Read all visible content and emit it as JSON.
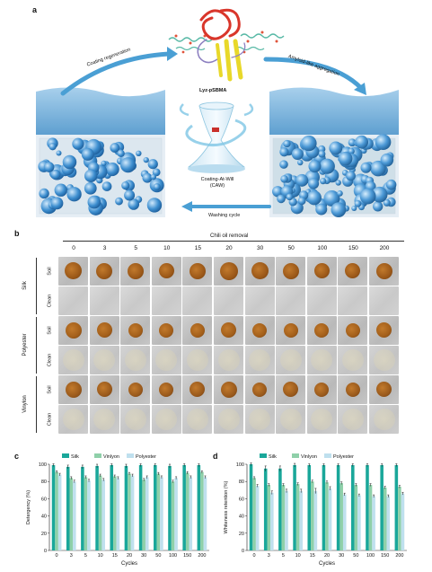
{
  "panel_a": {
    "letter": "a",
    "protein_label": "Lyz-pSBMA",
    "left_arrow_label": "Coating regeneration",
    "right_arrow_label": "Amyloid-like aggregation",
    "center_label_line1": "Coating-At-Will",
    "center_label_line2": "(CAW)",
    "bottom_arrow_label": "Washing cycle",
    "colors": {
      "fabric": "#7fb7df",
      "arrow": "#4a9fd4",
      "sphere": "#3d8fd0",
      "helix": "#d9362b",
      "sheet": "#e8d82a"
    }
  },
  "panel_b": {
    "letter": "b",
    "title": "Chili oil removal",
    "cycles": [
      "0",
      "3",
      "5",
      "10",
      "15",
      "20",
      "30",
      "50",
      "100",
      "150",
      "200"
    ],
    "groups": [
      {
        "name": "Silk",
        "rows": [
          "Soil",
          "Clean"
        ]
      },
      {
        "name": "Polyester",
        "rows": [
          "Soil",
          "Clean"
        ]
      },
      {
        "name": "Vinylon",
        "rows": [
          "Soil",
          "Clean"
        ]
      }
    ]
  },
  "chart_data": [
    {
      "panel": "c",
      "type": "bar",
      "categories": [
        "0",
        "3",
        "5",
        "10",
        "15",
        "20",
        "30",
        "50",
        "100",
        "150",
        "200"
      ],
      "series": [
        {
          "name": "Silk",
          "color": "#1aa79a",
          "values": [
            99,
            97,
            97,
            98,
            99,
            98,
            99,
            99,
            98,
            99,
            99
          ],
          "err": [
            1.5,
            2,
            2,
            2,
            1.5,
            2,
            1.5,
            1.5,
            2,
            1.5,
            1.5
          ]
        },
        {
          "name": "Vinlyon",
          "color": "#8fd0a9",
          "values": [
            91,
            84,
            85,
            87,
            86,
            89,
            82,
            89,
            80,
            90,
            91
          ],
          "err": [
            1.5,
            1.5,
            1.5,
            1.5,
            1.5,
            1.5,
            1.5,
            1.5,
            1.5,
            1.5,
            1.5
          ]
        },
        {
          "name": "Polyester",
          "color": "#bfe0ee",
          "values": [
            88,
            80,
            81,
            82,
            84,
            87,
            85,
            85,
            84,
            85,
            85
          ],
          "err": [
            1.5,
            1.5,
            1.5,
            1.5,
            1.5,
            1.5,
            1.5,
            1.5,
            1.5,
            1.5,
            1.5
          ]
        }
      ],
      "xlabel": "Cycles",
      "ylabel": "Detergency (%)",
      "ylim": [
        0,
        100
      ],
      "yticks": [
        "0",
        "20",
        "40",
        "60",
        "80",
        "100"
      ],
      "legend": "top"
    },
    {
      "panel": "d",
      "type": "bar",
      "categories": [
        "0",
        "3",
        "5",
        "10",
        "15",
        "20",
        "30",
        "50",
        "100",
        "150",
        "200"
      ],
      "series": [
        {
          "name": "Silk",
          "color": "#1aa79a",
          "values": [
            100,
            95,
            95,
            99,
            99,
            99,
            99,
            99,
            99,
            99,
            99
          ],
          "err": [
            1.5,
            3,
            3,
            2,
            1.5,
            1.5,
            1.5,
            1.5,
            1.5,
            1.5,
            1.5
          ]
        },
        {
          "name": "Vinlyon",
          "color": "#8fd0a9",
          "values": [
            84,
            76,
            76,
            77,
            80,
            79,
            78,
            76,
            76,
            73,
            74
          ],
          "err": [
            1.5,
            1.5,
            1.5,
            1.5,
            1.5,
            1.5,
            1.5,
            1.5,
            1.5,
            1.5,
            1.5
          ]
        },
        {
          "name": "Polyester",
          "color": "#bfe0ee",
          "values": [
            75,
            67,
            69,
            69,
            69,
            72,
            65,
            64,
            63,
            63,
            66
          ],
          "err": [
            1.5,
            2,
            2,
            2,
            3,
            2,
            1.5,
            1.5,
            1.5,
            1.5,
            1.5
          ]
        }
      ],
      "xlabel": "Cycles",
      "ylabel": "Whiteness retention (%)",
      "ylim": [
        0,
        100
      ],
      "yticks": [
        "0",
        "20",
        "40",
        "60",
        "80",
        "100"
      ],
      "legend": "top"
    }
  ]
}
